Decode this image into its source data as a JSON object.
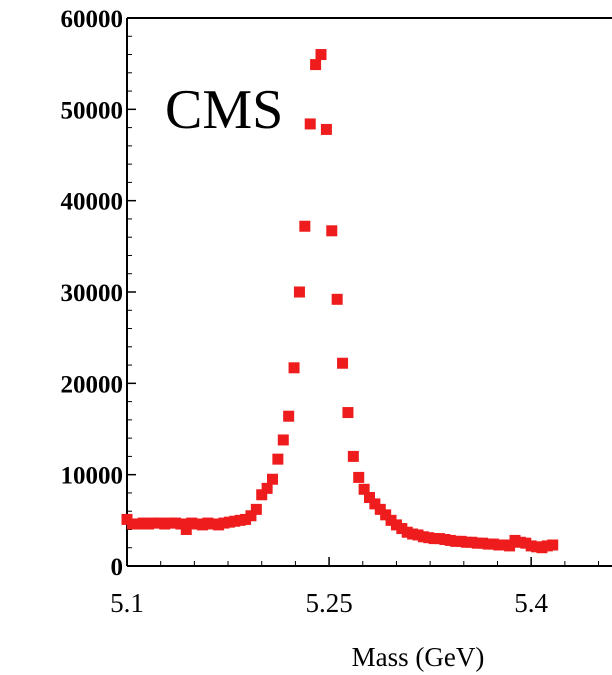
{
  "chart_data": {
    "type": "scatter",
    "annotation": "CMS",
    "xlabel": "Mass (GeV)",
    "ylabel": "",
    "xlim": [
      5.1,
      5.46
    ],
    "ylim": [
      0,
      60000
    ],
    "x_ticks": [
      5.1,
      5.25,
      5.4
    ],
    "x_tick_labels": [
      "5.1",
      "5.25",
      "5.4"
    ],
    "y_ticks": [
      0,
      10000,
      20000,
      30000,
      40000,
      50000,
      60000
    ],
    "y_tick_labels": [
      "0",
      "10000",
      "20000",
      "30000",
      "40000",
      "50000",
      "60000"
    ],
    "grid": false,
    "marker_color": "#ee1c1c",
    "series": [
      {
        "points": [
          [
            5.1,
            5100
          ],
          [
            5.104,
            4600
          ],
          [
            5.108,
            4600
          ],
          [
            5.112,
            4700
          ],
          [
            5.116,
            4600
          ],
          [
            5.12,
            4700
          ],
          [
            5.124,
            4700
          ],
          [
            5.128,
            4600
          ],
          [
            5.132,
            4700
          ],
          [
            5.136,
            4700
          ],
          [
            5.14,
            4600
          ],
          [
            5.144,
            4000
          ],
          [
            5.148,
            4700
          ],
          [
            5.152,
            4600
          ],
          [
            5.156,
            4500
          ],
          [
            5.16,
            4700
          ],
          [
            5.164,
            4600
          ],
          [
            5.168,
            4500
          ],
          [
            5.172,
            4700
          ],
          [
            5.176,
            4800
          ],
          [
            5.18,
            4900
          ],
          [
            5.184,
            5000
          ],
          [
            5.188,
            5100
          ],
          [
            5.192,
            5500
          ],
          [
            5.196,
            6200
          ],
          [
            5.2,
            7800
          ],
          [
            5.204,
            8500
          ],
          [
            5.208,
            9500
          ],
          [
            5.212,
            11700
          ],
          [
            5.216,
            13800
          ],
          [
            5.22,
            16400
          ],
          [
            5.224,
            21700
          ],
          [
            5.228,
            30000
          ],
          [
            5.232,
            37200
          ],
          [
            5.236,
            48400
          ],
          [
            5.24,
            54900
          ],
          [
            5.244,
            56000
          ],
          [
            5.248,
            47800
          ],
          [
            5.252,
            36700
          ],
          [
            5.256,
            29200
          ],
          [
            5.26,
            22200
          ],
          [
            5.264,
            16800
          ],
          [
            5.268,
            12000
          ],
          [
            5.272,
            9700
          ],
          [
            5.276,
            8400
          ],
          [
            5.28,
            7500
          ],
          [
            5.284,
            6800
          ],
          [
            5.288,
            6200
          ],
          [
            5.292,
            5600
          ],
          [
            5.296,
            5000
          ],
          [
            5.3,
            4500
          ],
          [
            5.304,
            4100
          ],
          [
            5.308,
            3700
          ],
          [
            5.312,
            3500
          ],
          [
            5.316,
            3400
          ],
          [
            5.32,
            3200
          ],
          [
            5.324,
            3100
          ],
          [
            5.328,
            3000
          ],
          [
            5.332,
            3000
          ],
          [
            5.336,
            2900
          ],
          [
            5.34,
            2800
          ],
          [
            5.344,
            2700
          ],
          [
            5.348,
            2700
          ],
          [
            5.352,
            2600
          ],
          [
            5.356,
            2600
          ],
          [
            5.36,
            2500
          ],
          [
            5.364,
            2500
          ],
          [
            5.368,
            2400
          ],
          [
            5.372,
            2400
          ],
          [
            5.376,
            2300
          ],
          [
            5.38,
            2300
          ],
          [
            5.384,
            2200
          ],
          [
            5.388,
            2800
          ],
          [
            5.392,
            2600
          ],
          [
            5.396,
            2500
          ],
          [
            5.4,
            2200
          ],
          [
            5.404,
            2100
          ],
          [
            5.408,
            2000
          ],
          [
            5.412,
            2200
          ],
          [
            5.416,
            2300
          ]
        ]
      }
    ]
  }
}
